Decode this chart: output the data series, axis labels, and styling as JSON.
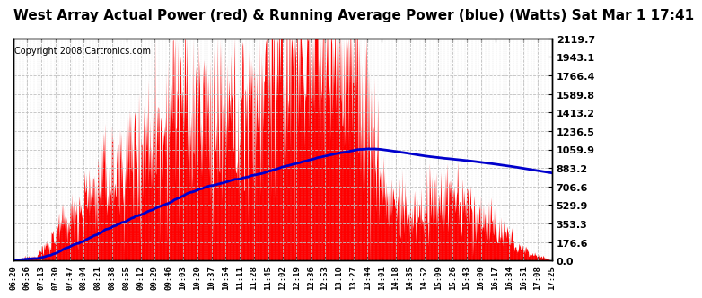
{
  "title": "West Array Actual Power (red) & Running Average Power (blue) (Watts) Sat Mar 1 17:41",
  "copyright": "Copyright 2008 Cartronics.com",
  "ylabel_right": [
    "2119.7",
    "1943.1",
    "1766.4",
    "1589.8",
    "1413.2",
    "1236.5",
    "1059.9",
    "883.2",
    "706.6",
    "529.9",
    "353.3",
    "176.6",
    "0.0"
  ],
  "ytick_vals": [
    2119.7,
    1943.1,
    1766.4,
    1589.8,
    1413.2,
    1236.5,
    1059.9,
    883.2,
    706.6,
    529.9,
    353.3,
    176.6,
    0.0
  ],
  "ymax": 2119.7,
  "ymin": 0.0,
  "bg_color": "#ffffff",
  "plot_bg": "#ffffff",
  "grid_color": "#c0c0c0",
  "bar_color": "#ff0000",
  "line_color": "#0000cc",
  "title_fontsize": 11,
  "copyright_fontsize": 7,
  "tick_label_fontsize": 6.5,
  "tick_labels": [
    "06:20",
    "06:56",
    "07:13",
    "07:30",
    "07:47",
    "08:04",
    "08:21",
    "08:38",
    "08:55",
    "09:12",
    "09:29",
    "09:46",
    "10:03",
    "10:20",
    "10:37",
    "10:54",
    "11:11",
    "11:28",
    "11:45",
    "12:02",
    "12:19",
    "12:36",
    "12:53",
    "13:10",
    "13:27",
    "13:44",
    "14:01",
    "14:18",
    "14:35",
    "14:52",
    "15:09",
    "15:26",
    "15:43",
    "16:00",
    "16:17",
    "16:34",
    "16:51",
    "17:08",
    "17:25"
  ],
  "n_points": 1000,
  "t_max": 665
}
